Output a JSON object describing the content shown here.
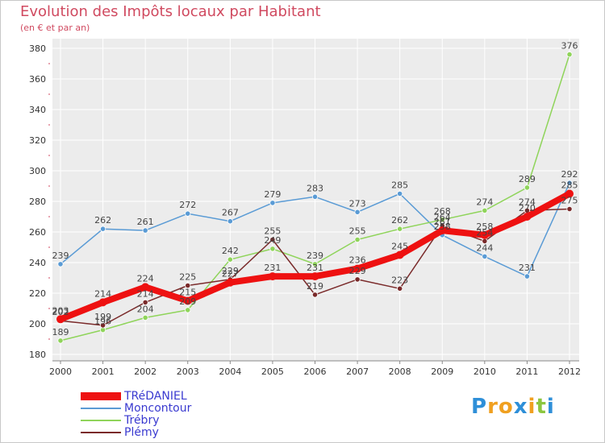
{
  "title": "Evolution des Impôts locaux par Habitant",
  "subtitle": "(en € et par an)",
  "brand": {
    "text": "Proxiti",
    "letters": [
      "P",
      "r",
      "o",
      "x",
      "i",
      "t",
      "i"
    ],
    "colors": [
      "#2e8fd8",
      "#f0a020",
      "#f0a020",
      "#2e8fd8",
      "#f0a020",
      "#8cc63f",
      "#2e8fd8"
    ]
  },
  "chart_data": {
    "type": "line",
    "title": "Evolution des Impôts locaux par Habitant",
    "subtitle": "(en € et par an)",
    "xlabel": "",
    "ylabel": "",
    "x": [
      "2000",
      "2001",
      "2002",
      "2003",
      "2004",
      "2005",
      "2006",
      "2007",
      "2008",
      "2009",
      "2010",
      "2011",
      "2012"
    ],
    "ylim": [
      180,
      380
    ],
    "yticks": [
      180,
      200,
      220,
      240,
      260,
      280,
      300,
      320,
      340,
      360,
      380
    ],
    "grid": true,
    "series": [
      {
        "name": "TRéDANIEL",
        "color": "#ee1111",
        "values": [
          203,
          214,
          224,
          215,
          227,
          231,
          231,
          236,
          245,
          261,
          258,
          270,
          285
        ]
      },
      {
        "name": "Moncontour",
        "color": "#5a9bd5",
        "values": [
          239,
          262,
          261,
          272,
          267,
          279,
          283,
          273,
          285,
          258,
          244,
          231,
          292
        ]
      },
      {
        "name": "Trébry",
        "color": "#8fd45a",
        "values": [
          189,
          196,
          204,
          209,
          242,
          249,
          239,
          255,
          262,
          268,
          274,
          289,
          376
        ]
      },
      {
        "name": "Plémy",
        "color": "#7a2a2a",
        "values": [
          202,
          199,
          214,
          225,
          229,
          255,
          219,
          229,
          223,
          264,
          254,
          274,
          275
        ]
      }
    ]
  }
}
